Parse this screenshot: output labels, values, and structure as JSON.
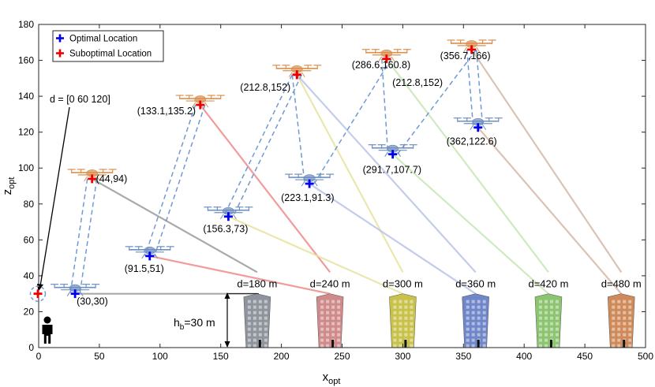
{
  "chart_data": {
    "type": "scatter",
    "xlabel_main": "x",
    "xlabel_sub": "opt",
    "ylabel_main": "z",
    "ylabel_sub": "opt",
    "xlim": [
      0,
      500
    ],
    "ylim": [
      0,
      180
    ],
    "xticks": [
      0,
      50,
      100,
      150,
      200,
      250,
      300,
      350,
      400,
      450,
      500
    ],
    "yticks": [
      0,
      20,
      40,
      60,
      80,
      100,
      120,
      140,
      160,
      180
    ],
    "legend": {
      "position": "top-left",
      "entries": [
        {
          "label": "Optimal Location",
          "color": "#0000ee"
        },
        {
          "label": "Suboptimal Location",
          "color": "#ee0000"
        }
      ]
    },
    "annotation_d": "d = [0 60 120]",
    "hb_label_main": "h",
    "hb_label_sub": "b",
    "hb_label_rest": "=30 m",
    "user": {
      "x": 0,
      "z": 30
    },
    "optimal": [
      {
        "x": 30,
        "z": 30,
        "label": "(30,30)"
      },
      {
        "x": 91.5,
        "z": 51,
        "label": "(91.5,51)"
      },
      {
        "x": 156.3,
        "z": 73,
        "label": "(156.3,73)"
      },
      {
        "x": 223.1,
        "z": 91.3,
        "label": "(223.1,91.3)"
      },
      {
        "x": 291.7,
        "z": 107.7,
        "label": "(291.7,107.7)"
      },
      {
        "x": 362,
        "z": 122.6,
        "label": "(362,122.6)"
      }
    ],
    "suboptimal": [
      {
        "x": 44,
        "z": 94,
        "label": "(44,94)"
      },
      {
        "x": 133.1,
        "z": 135.2,
        "label": "(133.1,135.2)"
      },
      {
        "x": 212.8,
        "z": 152,
        "label": "(212.8,152)"
      },
      {
        "x": 212.8,
        "z": 152,
        "label": "(212.8,152)"
      },
      {
        "x": 286.6,
        "z": 160.8,
        "label": "(286.6,160.8)"
      },
      {
        "x": 356.7,
        "z": 166,
        "label": "(356.7,166)"
      }
    ],
    "buildings": [
      {
        "x": 180,
        "height": 30,
        "label": "d=180 m",
        "color": "#8f949c",
        "line_color": "#9a9a9a"
      },
      {
        "x": 240,
        "height": 30,
        "label": "d=240 m",
        "color": "#cf8a8a",
        "line_color": "#f08a8a"
      },
      {
        "x": 300,
        "height": 30,
        "label": "d=300 m",
        "color": "#c9c24a",
        "line_color": "#e6e3a0"
      },
      {
        "x": 360,
        "height": 30,
        "label": "d=360 m",
        "color": "#6f86c9",
        "line_color": "#b9c3e6"
      },
      {
        "x": 420,
        "height": 30,
        "label": "d=420 m",
        "color": "#8cc46f",
        "line_color": "#c8e6b4"
      },
      {
        "x": 480,
        "height": 30,
        "label": "d=480 m",
        "color": "#cf8a5a",
        "line_color": "#d4b8a8"
      }
    ],
    "pairs": [
      {
        "a": [
          [
            44,
            94
          ],
          [
            30,
            30
          ]
        ],
        "b": [
          [
            44,
            94
          ],
          [
            30,
            30
          ]
        ],
        "building": 0
      },
      {
        "a": [
          [
            133.1,
            135.2
          ],
          [
            91.5,
            51
          ]
        ],
        "b": [
          [
            133.1,
            135.2
          ],
          [
            91.5,
            51
          ]
        ],
        "building": 1
      },
      {
        "a": [
          [
            212.8,
            152
          ],
          [
            156.3,
            73
          ]
        ],
        "b": [
          [
            212.8,
            152
          ],
          [
            156.3,
            73
          ]
        ],
        "building": 2
      },
      {
        "a": [
          [
            212.8,
            152
          ],
          [
            223.1,
            91.3
          ]
        ],
        "b": [
          [
            286.6,
            160.8
          ],
          [
            223.1,
            91.3
          ]
        ],
        "building": 3
      },
      {
        "a": [
          [
            286.6,
            160.8
          ],
          [
            291.7,
            107.7
          ]
        ],
        "b": [
          [
            356.7,
            166
          ],
          [
            291.7,
            107.7
          ]
        ],
        "building": 4
      },
      {
        "a": [
          [
            356.7,
            166
          ],
          [
            362,
            122.6
          ]
        ],
        "b": [
          [
            356.7,
            166
          ],
          [
            362,
            122.6
          ]
        ],
        "building": 5
      }
    ],
    "link_lines": [
      {
        "from": [
          44,
          94
        ],
        "to": [
          180,
          42
        ],
        "color": "#9a9a9a"
      },
      {
        "from": [
          30,
          30
        ],
        "to": [
          180,
          30
        ],
        "color": "#9a9a9a"
      },
      {
        "from": [
          133.1,
          135.2
        ],
        "to": [
          240,
          42
        ],
        "color": "#f08a8a"
      },
      {
        "from": [
          91.5,
          51
        ],
        "to": [
          240,
          30
        ],
        "color": "#f08a8a"
      },
      {
        "from": [
          212.8,
          152
        ],
        "to": [
          300,
          42
        ],
        "color": "#e6e3a0"
      },
      {
        "from": [
          156.3,
          73
        ],
        "to": [
          300,
          30
        ],
        "color": "#e6e3a0"
      },
      {
        "from": [
          212.8,
          152
        ],
        "to": [
          360,
          42
        ],
        "color": "#b9c3e6"
      },
      {
        "from": [
          223.1,
          91.3
        ],
        "to": [
          360,
          30
        ],
        "color": "#b9c3e6"
      },
      {
        "from": [
          286.6,
          160.8
        ],
        "to": [
          420,
          42
        ],
        "color": "#c8e6b4"
      },
      {
        "from": [
          291.7,
          107.7
        ],
        "to": [
          420,
          30
        ],
        "color": "#c8e6b4"
      },
      {
        "from": [
          356.7,
          166
        ],
        "to": [
          480,
          42
        ],
        "color": "#d4b8a8"
      },
      {
        "from": [
          362,
          122.6
        ],
        "to": [
          480,
          30
        ],
        "color": "#d4b8a8"
      }
    ]
  }
}
